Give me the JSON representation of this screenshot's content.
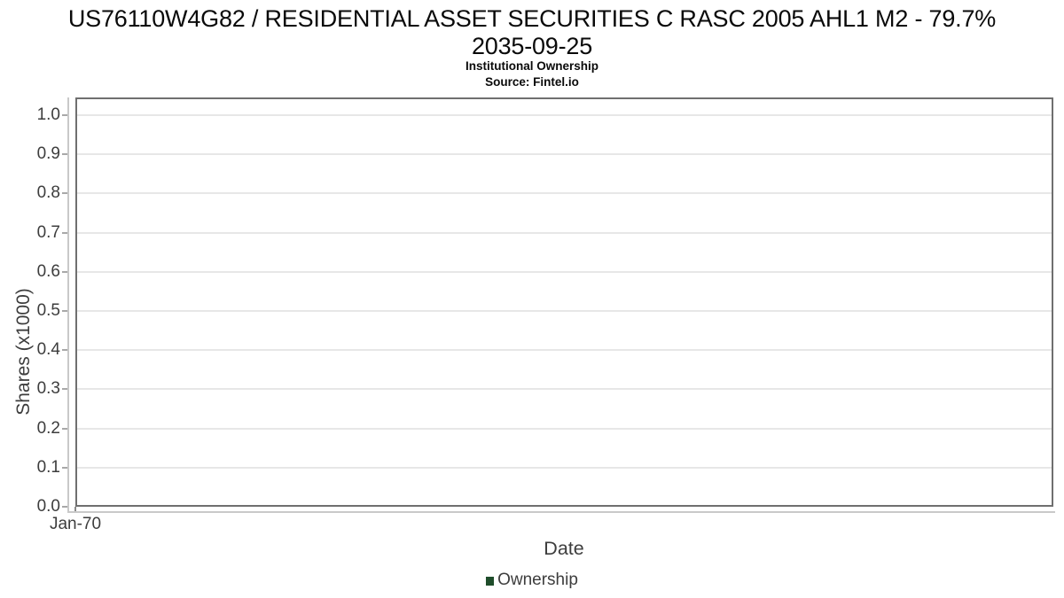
{
  "header": {
    "title_line1": "US76110W4G82 / RESIDENTIAL ASSET SECURITIES C RASC 2005 AHL1 M2 - 79.7%",
    "title_line2": "2035-09-25",
    "subtitle": "Institutional Ownership",
    "source": "Source: Fintel.io"
  },
  "chart_data": {
    "type": "line",
    "title": "US76110W4G82 / RESIDENTIAL ASSET SECURITIES C RASC 2005 AHL1 M2 - 79.7% 2035-09-25",
    "subtitle": "Institutional Ownership",
    "source": "Source: Fintel.io",
    "xlabel": "Date",
    "ylabel": "Shares (x1000)",
    "ylim": [
      0.0,
      1.045
    ],
    "y_ticks": [
      0.0,
      0.1,
      0.2,
      0.3,
      0.4,
      0.5,
      0.6,
      0.7,
      0.8,
      0.9,
      1.0
    ],
    "x_ticks": [
      {
        "label": "Jan-70",
        "x_frac": 0.0
      }
    ],
    "grid": true,
    "legend_position": "bottom",
    "series": [
      {
        "name": "Ownership",
        "color": "#1f4d2b",
        "x": [],
        "values": []
      }
    ]
  },
  "colors": {
    "plot_border": "#6f6f6f",
    "axis_line": "#c9c9c9",
    "gridline": "#e7e7e7",
    "tick_mark": "#a8a8a8",
    "x_tick_mark": "#8a8a8a",
    "label_text": "#3d3d3d",
    "title_text": "#0a0a0a",
    "legend_marker": "#1f4d2b"
  }
}
